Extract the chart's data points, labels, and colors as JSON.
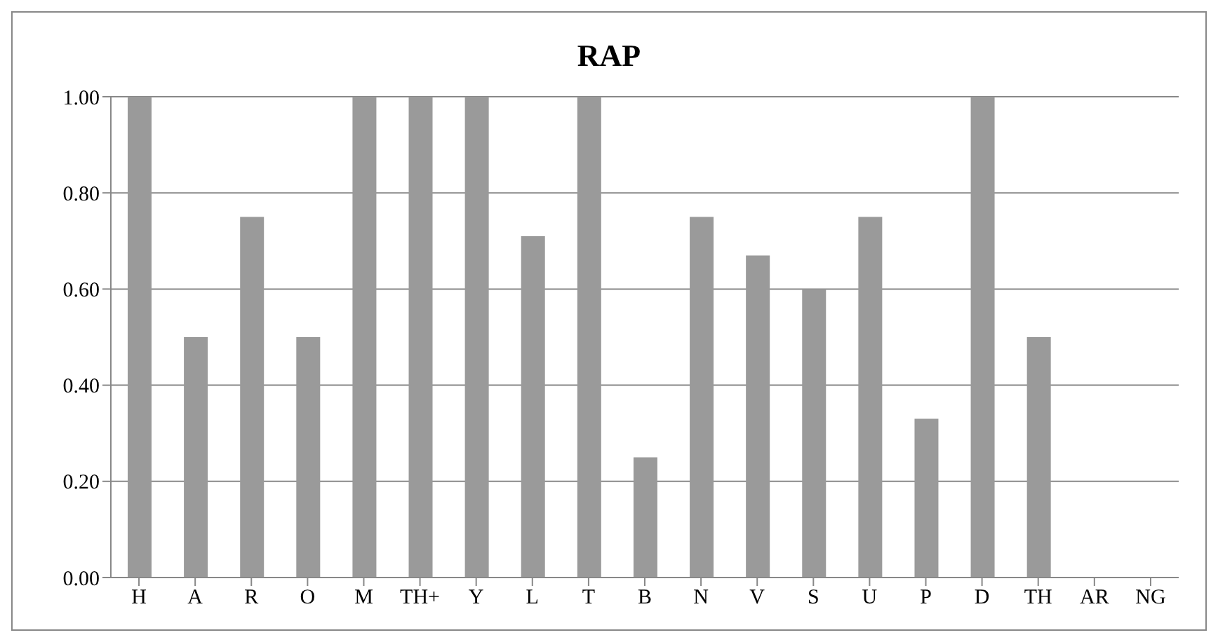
{
  "chart_data": {
    "type": "bar",
    "title": "RAP",
    "categories": [
      "H",
      "A",
      "R",
      "O",
      "M",
      "TH+",
      "Y",
      "L",
      "T",
      "B",
      "N",
      "V",
      "S",
      "U",
      "P",
      "D",
      "TH",
      "AR",
      "NG"
    ],
    "values": [
      1,
      0.5,
      0.75,
      0.5,
      1,
      1,
      1,
      0.71,
      1,
      0.25,
      0.75,
      0.67,
      0.6,
      0.75,
      0.33,
      1,
      0.5,
      0,
      0
    ],
    "color": "#9a9a9a",
    "ylim": [
      0,
      1
    ],
    "yticks": [
      {
        "value": 0,
        "label": "0.00"
      },
      {
        "value": 0.2,
        "label": "0.20"
      },
      {
        "value": 0.4,
        "label": "0.40"
      },
      {
        "value": 0.6,
        "label": "0.60"
      },
      {
        "value": 0.8,
        "label": "0.80"
      },
      {
        "value": 1,
        "label": "1.00"
      }
    ],
    "grid": "y"
  }
}
